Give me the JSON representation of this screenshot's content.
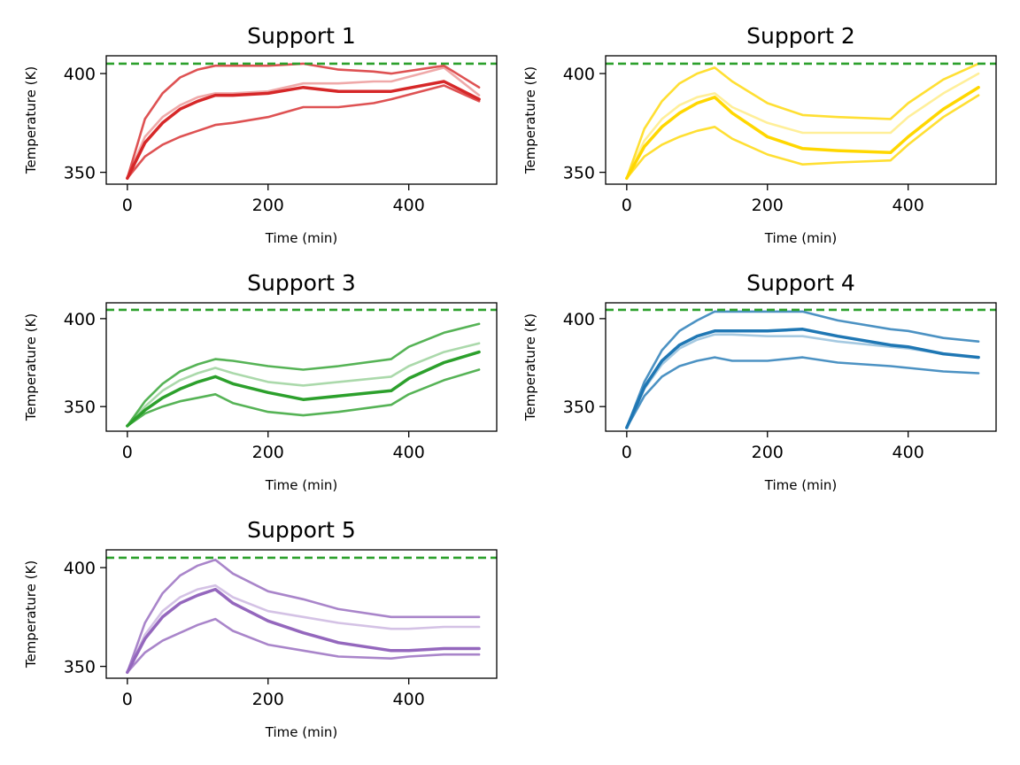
{
  "chart_data": [
    {
      "type": "line",
      "title": "Support 1",
      "xlabel": "Time (min)",
      "ylabel": "Temperature (K)",
      "xlim": [
        -30,
        525
      ],
      "ylim": [
        344,
        409
      ],
      "xticks": [
        0,
        200,
        400
      ],
      "yticks": [
        350,
        400
      ],
      "color": "#d62728",
      "limit": 405,
      "grid": false,
      "series": [
        {
          "opacity": 0.8,
          "width": 2.6,
          "x": [
            0,
            25,
            50,
            75,
            100,
            125,
            150,
            200,
            250,
            300,
            350,
            375,
            450,
            500
          ],
          "y": [
            347,
            377,
            390,
            398,
            402,
            404,
            404,
            404,
            405,
            402,
            401,
            400,
            404,
            393
          ]
        },
        {
          "opacity": 0.4,
          "width": 2.6,
          "x": [
            0,
            25,
            50,
            75,
            100,
            125,
            150,
            200,
            250,
            300,
            350,
            375,
            450,
            500
          ],
          "y": [
            347,
            368,
            378,
            384,
            388,
            390,
            390,
            391,
            395,
            395,
            396,
            396,
            403,
            389
          ]
        },
        {
          "opacity": 1.0,
          "width": 3.5,
          "x": [
            0,
            25,
            50,
            75,
            100,
            125,
            150,
            200,
            250,
            300,
            350,
            375,
            450,
            500
          ],
          "y": [
            347,
            365,
            375,
            382,
            386,
            389,
            389,
            390,
            393,
            391,
            391,
            391,
            396,
            387
          ]
        },
        {
          "opacity": 0.8,
          "width": 2.6,
          "x": [
            0,
            25,
            50,
            75,
            100,
            125,
            150,
            200,
            250,
            300,
            350,
            375,
            450,
            500
          ],
          "y": [
            347,
            358,
            364,
            368,
            371,
            374,
            375,
            378,
            383,
            383,
            385,
            387,
            394,
            386
          ]
        }
      ]
    },
    {
      "type": "line",
      "title": "Support 2",
      "xlabel": "Time (min)",
      "ylabel": "Temperature (K)",
      "xlim": [
        -30,
        525
      ],
      "ylim": [
        344,
        409
      ],
      "xticks": [
        0,
        200,
        400
      ],
      "yticks": [
        350,
        400
      ],
      "color": "#ffd700",
      "limit": 405,
      "grid": false,
      "series": [
        {
          "opacity": 0.8,
          "width": 2.6,
          "x": [
            0,
            25,
            50,
            75,
            100,
            125,
            150,
            200,
            250,
            300,
            375,
            400,
            450,
            500
          ],
          "y": [
            347,
            372,
            386,
            395,
            400,
            403,
            396,
            385,
            379,
            378,
            377,
            385,
            397,
            405
          ]
        },
        {
          "opacity": 0.4,
          "width": 2.6,
          "x": [
            0,
            25,
            50,
            75,
            100,
            125,
            150,
            200,
            250,
            300,
            375,
            400,
            450,
            500
          ],
          "y": [
            347,
            366,
            377,
            384,
            388,
            390,
            383,
            375,
            370,
            370,
            370,
            378,
            390,
            400
          ]
        },
        {
          "opacity": 1.0,
          "width": 3.5,
          "x": [
            0,
            25,
            50,
            75,
            100,
            125,
            150,
            200,
            250,
            300,
            375,
            400,
            450,
            500
          ],
          "y": [
            347,
            363,
            373,
            380,
            385,
            388,
            380,
            368,
            362,
            361,
            360,
            368,
            382,
            393
          ]
        },
        {
          "opacity": 0.8,
          "width": 2.6,
          "x": [
            0,
            25,
            50,
            75,
            100,
            125,
            150,
            200,
            250,
            300,
            375,
            400,
            450,
            500
          ],
          "y": [
            347,
            358,
            364,
            368,
            371,
            373,
            367,
            359,
            354,
            355,
            356,
            364,
            378,
            389
          ]
        }
      ]
    },
    {
      "type": "line",
      "title": "Support 3",
      "xlabel": "Time (min)",
      "ylabel": "Temperature (K)",
      "xlim": [
        -30,
        525
      ],
      "ylim": [
        336,
        409
      ],
      "xticks": [
        0,
        200,
        400
      ],
      "yticks": [
        350,
        400
      ],
      "color": "#2ca02c",
      "limit": 405,
      "grid": false,
      "series": [
        {
          "opacity": 0.8,
          "width": 2.6,
          "x": [
            0,
            25,
            50,
            75,
            100,
            125,
            150,
            200,
            250,
            300,
            375,
            400,
            450,
            500
          ],
          "y": [
            339,
            353,
            363,
            370,
            374,
            377,
            376,
            373,
            371,
            373,
            377,
            384,
            392,
            397
          ]
        },
        {
          "opacity": 0.4,
          "width": 2.6,
          "x": [
            0,
            25,
            50,
            75,
            100,
            125,
            150,
            200,
            250,
            300,
            375,
            400,
            450,
            500
          ],
          "y": [
            339,
            350,
            359,
            365,
            369,
            372,
            369,
            364,
            362,
            364,
            367,
            373,
            381,
            386
          ]
        },
        {
          "opacity": 1.0,
          "width": 3.5,
          "x": [
            0,
            25,
            50,
            75,
            100,
            125,
            150,
            200,
            250,
            300,
            375,
            400,
            450,
            500
          ],
          "y": [
            339,
            348,
            355,
            360,
            364,
            367,
            363,
            358,
            354,
            356,
            359,
            366,
            375,
            381
          ]
        },
        {
          "opacity": 0.8,
          "width": 2.6,
          "x": [
            0,
            25,
            50,
            75,
            100,
            125,
            150,
            200,
            250,
            300,
            375,
            400,
            450,
            500
          ],
          "y": [
            339,
            346,
            350,
            353,
            355,
            357,
            352,
            347,
            345,
            347,
            351,
            357,
            365,
            371
          ]
        }
      ]
    },
    {
      "type": "line",
      "title": "Support 4",
      "xlabel": "Time (min)",
      "ylabel": "Temperature (K)",
      "xlim": [
        -30,
        525
      ],
      "ylim": [
        336,
        409
      ],
      "xticks": [
        0,
        200,
        400
      ],
      "yticks": [
        350,
        400
      ],
      "color": "#1f77b4",
      "limit": 405,
      "grid": false,
      "series": [
        {
          "opacity": 0.8,
          "width": 2.6,
          "x": [
            0,
            25,
            50,
            75,
            100,
            125,
            150,
            200,
            250,
            300,
            375,
            400,
            450,
            500
          ],
          "y": [
            338,
            364,
            382,
            393,
            399,
            404,
            404,
            404,
            404,
            399,
            394,
            393,
            389,
            387
          ]
        },
        {
          "opacity": 0.4,
          "width": 2.6,
          "x": [
            0,
            25,
            50,
            75,
            100,
            125,
            150,
            200,
            250,
            300,
            375,
            400,
            450,
            500
          ],
          "y": [
            338,
            360,
            374,
            383,
            388,
            391,
            391,
            390,
            390,
            387,
            384,
            383,
            380,
            378
          ]
        },
        {
          "opacity": 1.0,
          "width": 3.5,
          "x": [
            0,
            25,
            50,
            75,
            100,
            125,
            150,
            200,
            250,
            300,
            375,
            400,
            450,
            500
          ],
          "y": [
            338,
            361,
            376,
            385,
            390,
            393,
            393,
            393,
            394,
            390,
            385,
            384,
            380,
            378
          ]
        },
        {
          "opacity": 0.8,
          "width": 2.6,
          "x": [
            0,
            25,
            50,
            75,
            100,
            125,
            150,
            200,
            250,
            300,
            375,
            400,
            450,
            500
          ],
          "y": [
            338,
            356,
            367,
            373,
            376,
            378,
            376,
            376,
            378,
            375,
            373,
            372,
            370,
            369
          ]
        }
      ]
    },
    {
      "type": "line",
      "title": "Support 5",
      "xlabel": "Time (min)",
      "ylabel": "Temperature (K)",
      "xlim": [
        -30,
        525
      ],
      "ylim": [
        344,
        409
      ],
      "xticks": [
        0,
        200,
        400
      ],
      "yticks": [
        350,
        400
      ],
      "color": "#9467bd",
      "limit": 405,
      "grid": false,
      "series": [
        {
          "opacity": 0.8,
          "width": 2.6,
          "x": [
            0,
            25,
            50,
            75,
            100,
            125,
            150,
            200,
            250,
            300,
            375,
            400,
            450,
            500
          ],
          "y": [
            347,
            372,
            387,
            396,
            401,
            404,
            397,
            388,
            384,
            379,
            375,
            375,
            375,
            375
          ]
        },
        {
          "opacity": 0.4,
          "width": 2.6,
          "x": [
            0,
            25,
            50,
            75,
            100,
            125,
            150,
            200,
            250,
            300,
            375,
            400,
            450,
            500
          ],
          "y": [
            347,
            366,
            378,
            385,
            389,
            391,
            385,
            378,
            375,
            372,
            369,
            369,
            370,
            370
          ]
        },
        {
          "opacity": 1.0,
          "width": 3.5,
          "x": [
            0,
            25,
            50,
            75,
            100,
            125,
            150,
            200,
            250,
            300,
            375,
            400,
            450,
            500
          ],
          "y": [
            347,
            364,
            375,
            382,
            386,
            389,
            382,
            373,
            367,
            362,
            358,
            358,
            359,
            359
          ]
        },
        {
          "opacity": 0.8,
          "width": 2.6,
          "x": [
            0,
            25,
            50,
            75,
            100,
            125,
            150,
            200,
            250,
            300,
            375,
            400,
            450,
            500
          ],
          "y": [
            347,
            357,
            363,
            367,
            371,
            374,
            368,
            361,
            358,
            355,
            354,
            355,
            356,
            356
          ]
        }
      ]
    }
  ]
}
